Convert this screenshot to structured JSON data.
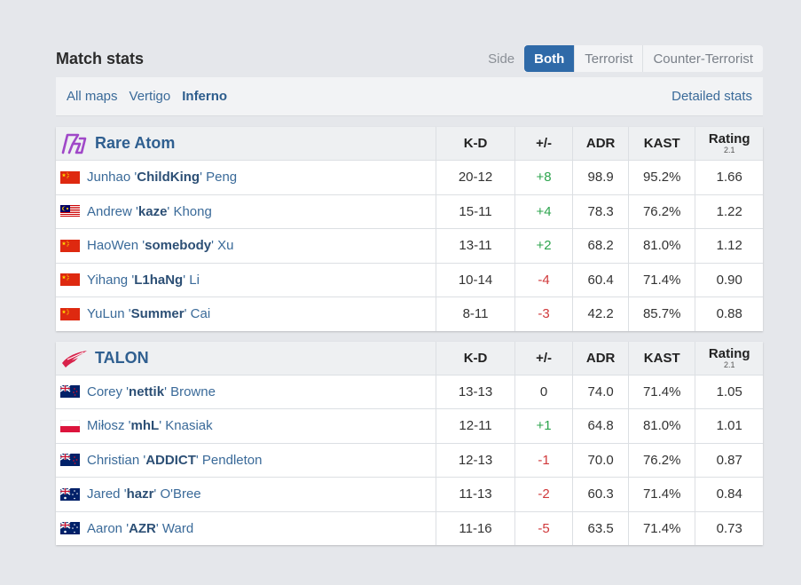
{
  "header": {
    "title": "Match stats",
    "side_label": "Side",
    "side_tabs": [
      "Both",
      "Terrorist",
      "Counter-Terrorist"
    ],
    "active_side": "Both"
  },
  "maps": {
    "items": [
      "All maps",
      "Vertigo",
      "Inferno"
    ],
    "active": "Inferno",
    "detailed_label": "Detailed stats"
  },
  "columns": {
    "kd": "K-D",
    "pm": "+/-",
    "adr": "ADR",
    "kast": "KAST",
    "rating": "Rating",
    "rating_sub": "2.1"
  },
  "colors": {
    "accent": "#2f6aa8",
    "positive": "#2da44e",
    "negative": "#d0393b"
  },
  "teams": [
    {
      "name": "Rare Atom",
      "logo_icon": "rare-atom-logo",
      "players": [
        {
          "flag": "cn",
          "first": "Junhao '",
          "nick": "ChildKing",
          "last": "' Peng",
          "kd": "20-12",
          "pm": "+8",
          "adr": "98.9",
          "kast": "95.2%",
          "rating": "1.66"
        },
        {
          "flag": "my",
          "first": "Andrew '",
          "nick": "kaze",
          "last": "' Khong",
          "kd": "15-11",
          "pm": "+4",
          "adr": "78.3",
          "kast": "76.2%",
          "rating": "1.22"
        },
        {
          "flag": "cn",
          "first": "HaoWen '",
          "nick": "somebody",
          "last": "' Xu",
          "kd": "13-11",
          "pm": "+2",
          "adr": "68.2",
          "kast": "81.0%",
          "rating": "1.12"
        },
        {
          "flag": "cn",
          "first": "Yihang '",
          "nick": "L1haNg",
          "last": "' Li",
          "kd": "10-14",
          "pm": "-4",
          "adr": "60.4",
          "kast": "71.4%",
          "rating": "0.90"
        },
        {
          "flag": "cn",
          "first": "YuLun '",
          "nick": "Summer",
          "last": "' Cai",
          "kd": "8-11",
          "pm": "-3",
          "adr": "42.2",
          "kast": "85.7%",
          "rating": "0.88"
        }
      ]
    },
    {
      "name": "TALON",
      "logo_icon": "talon-logo",
      "players": [
        {
          "flag": "nz",
          "first": "Corey '",
          "nick": "nettik",
          "last": "' Browne",
          "kd": "13-13",
          "pm": "0",
          "adr": "74.0",
          "kast": "71.4%",
          "rating": "1.05"
        },
        {
          "flag": "pl",
          "first": "Miłosz '",
          "nick": "mhL",
          "last": "' Knasiak",
          "kd": "12-11",
          "pm": "+1",
          "adr": "64.8",
          "kast": "81.0%",
          "rating": "1.01"
        },
        {
          "flag": "nz",
          "first": "Christian '",
          "nick": "ADDICT",
          "last": "' Pendleton",
          "kd": "12-13",
          "pm": "-1",
          "adr": "70.0",
          "kast": "76.2%",
          "rating": "0.87"
        },
        {
          "flag": "au",
          "first": "Jared '",
          "nick": "hazr",
          "last": "' O'Bree",
          "kd": "11-13",
          "pm": "-2",
          "adr": "60.3",
          "kast": "71.4%",
          "rating": "0.84"
        },
        {
          "flag": "au",
          "first": "Aaron '",
          "nick": "AZR",
          "last": "' Ward",
          "kd": "11-16",
          "pm": "-5",
          "adr": "63.5",
          "kast": "71.4%",
          "rating": "0.73"
        }
      ]
    }
  ]
}
